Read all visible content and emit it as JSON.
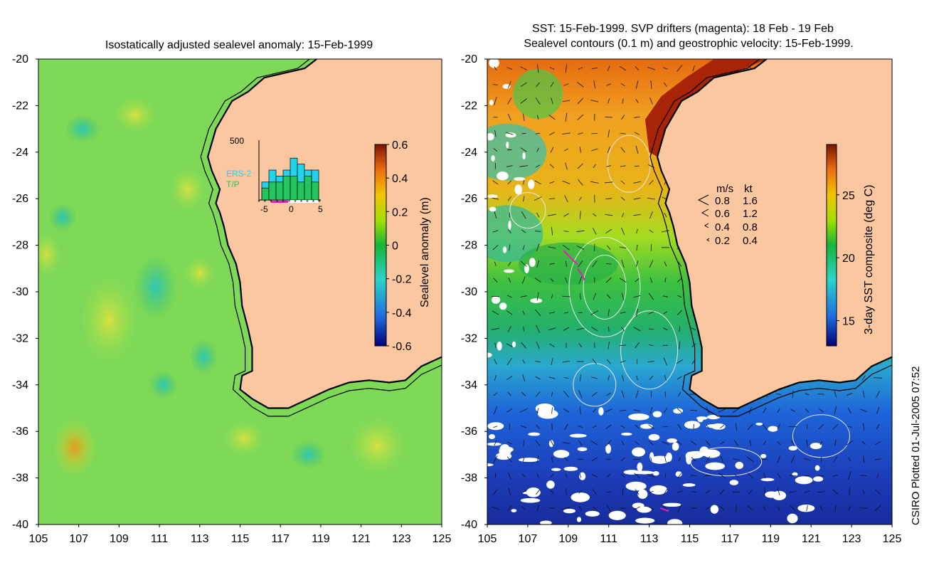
{
  "left_panel": {
    "title": "Isostatically adjusted sealevel anomaly: 15-Feb-1999",
    "colorbar_label": "Sealevel anomaly (m)",
    "colorbar_ticks": [
      "0.6",
      "0.4",
      "0.2",
      "0",
      "-0.2",
      "-0.4",
      "-0.6"
    ],
    "colorbar_range": [
      -0.6,
      0.6
    ],
    "inset": {
      "y_tick": "500",
      "x_ticks": [
        "-5",
        "0",
        "5"
      ],
      "legend": [
        {
          "label": "ERS-2",
          "color": "#22d3ee"
        },
        {
          "label": "T/P",
          "color": "#22c55e"
        }
      ],
      "ers2_counts": [
        150,
        250,
        200,
        250,
        350,
        300,
        250,
        250
      ],
      "tp_counts": [
        100,
        150,
        150,
        200,
        200,
        150,
        200,
        150
      ]
    }
  },
  "right_panel": {
    "title_line1": "SST: 15-Feb-1999. SVP drifters (magenta): 18 Feb - 19 Feb",
    "title_line2": "Sealevel contours (0.1 m) and geostrophic velocity: 15-Feb-1999.",
    "colorbar_label": "3-day SST composite (deg C)",
    "colorbar_ticks": [
      "25",
      "20",
      "15"
    ],
    "colorbar_range": [
      13,
      29
    ],
    "velocity_legend": {
      "header_ms": "m/s",
      "header_kt": "kt",
      "rows": [
        {
          "ms": "0.8",
          "kt": "1.6"
        },
        {
          "ms": "0.6",
          "kt": "1.2"
        },
        {
          "ms": "0.4",
          "kt": "0.8"
        },
        {
          "ms": "0.2",
          "kt": "0.4"
        }
      ]
    }
  },
  "axes": {
    "lat_ticks": [
      "-20",
      "-22",
      "-24",
      "-26",
      "-28",
      "-30",
      "-32",
      "-34",
      "-36",
      "-38",
      "-40"
    ],
    "lon_ticks": [
      "105",
      "107",
      "109",
      "111",
      "113",
      "115",
      "117",
      "119",
      "121",
      "123",
      "125"
    ],
    "lon_range": [
      105,
      125
    ],
    "lat_range": [
      -40,
      -20
    ]
  },
  "colors": {
    "land": "#fac7a0",
    "ocean_base_left": "#7ed957",
    "coastline": "#000000"
  },
  "footer": {
    "credit": "CSIRO Plotted 01-Jul-2005 07:52"
  }
}
